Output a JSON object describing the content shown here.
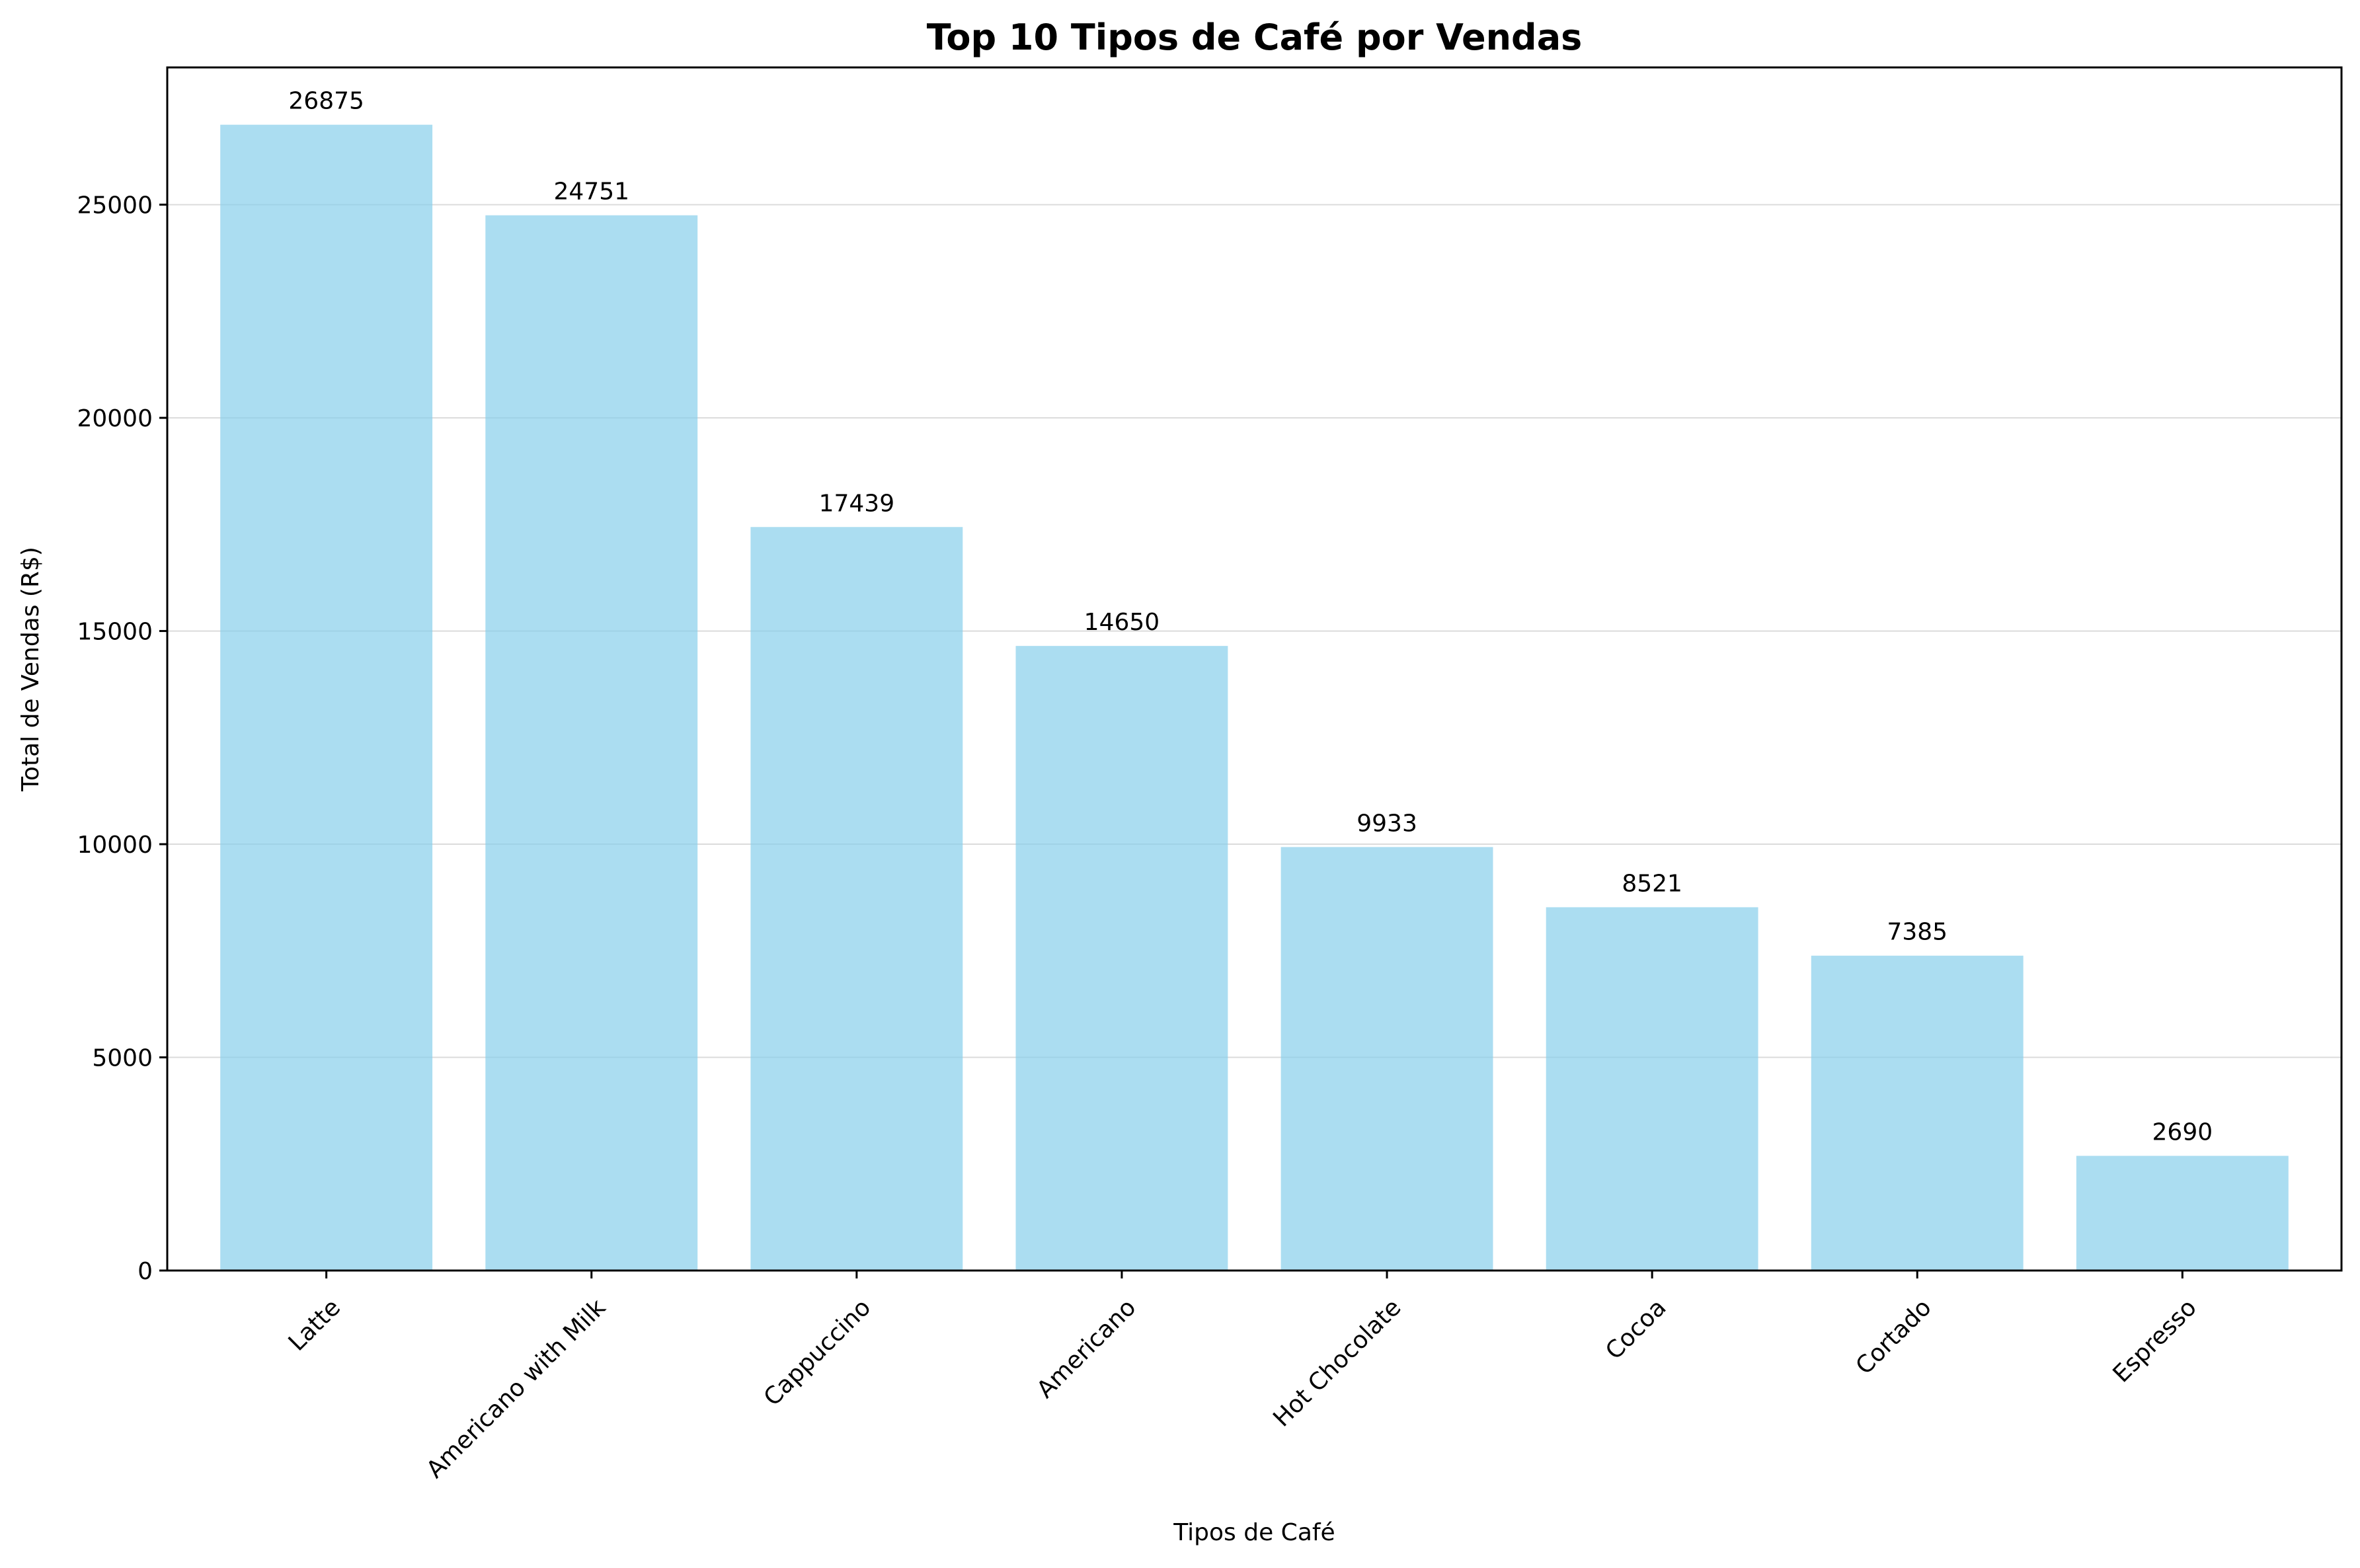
{
  "chart_data": {
    "type": "bar",
    "title": "Top 10 Tipos de Café por Vendas",
    "xlabel": "Tipos de Café",
    "ylabel": "Total de Vendas (R$)",
    "categories": [
      "Latte",
      "Americano with Milk",
      "Cappuccino",
      "Americano",
      "Hot Chocolate",
      "Cocoa",
      "Cortado",
      "Espresso"
    ],
    "values": [
      26875,
      24751,
      17439,
      14650,
      9933,
      8521,
      7385,
      2690
    ],
    "data_labels": [
      "26875",
      "24751",
      "17439",
      "14650",
      "9933",
      "8521",
      "7385",
      "2690"
    ],
    "y_ticks": [
      0,
      5000,
      10000,
      15000,
      20000,
      25000
    ],
    "y_tick_labels": [
      "0",
      "5000",
      "10000",
      "15000",
      "20000",
      "25000"
    ],
    "ylim": [
      0,
      28219
    ],
    "grid": "horizontal",
    "bar_color": "#87CEEB",
    "bar_alpha": 0.7
  }
}
